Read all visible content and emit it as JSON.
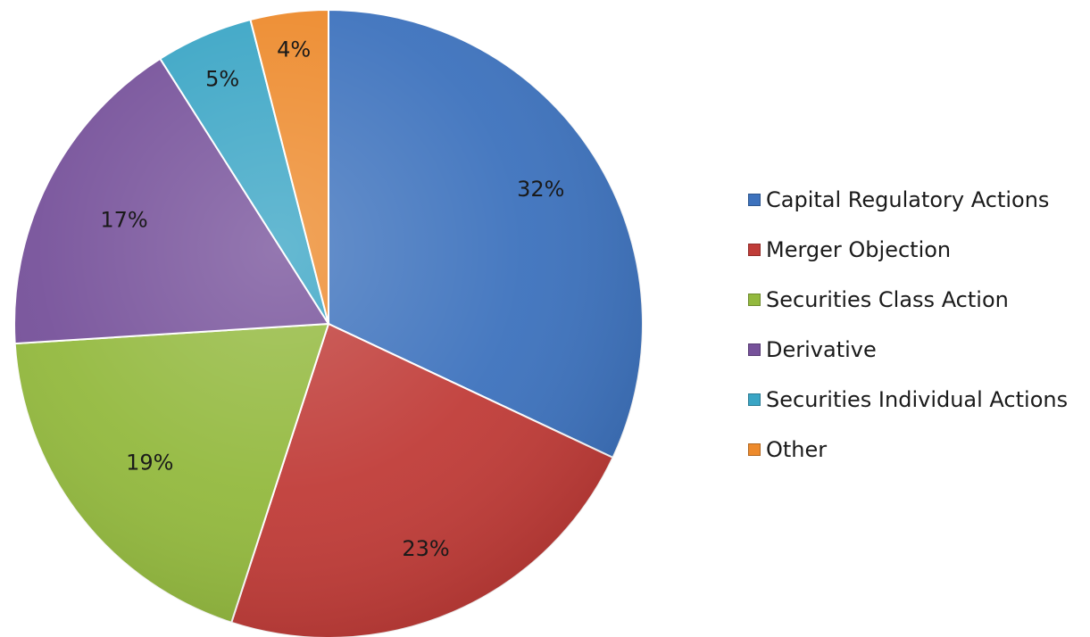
{
  "chart_data": {
    "type": "pie",
    "title": "",
    "categories": [
      "Capital Regulatory Actions",
      "Merger Objection",
      "Securities Class Action",
      "Derivative",
      "Securities Individual Actions",
      "Other"
    ],
    "values": [
      32,
      23,
      19,
      17,
      5,
      4
    ],
    "labels": [
      "32%",
      "23%",
      "19%",
      "17%",
      "5%",
      "4%"
    ],
    "colors": [
      "#3d72bd",
      "#c03c38",
      "#93b93e",
      "#76519a",
      "#3aa5c5",
      "#ed8a2c"
    ],
    "legend_position": "right",
    "start_angle": "12 o'clock",
    "direction": "clockwise"
  }
}
